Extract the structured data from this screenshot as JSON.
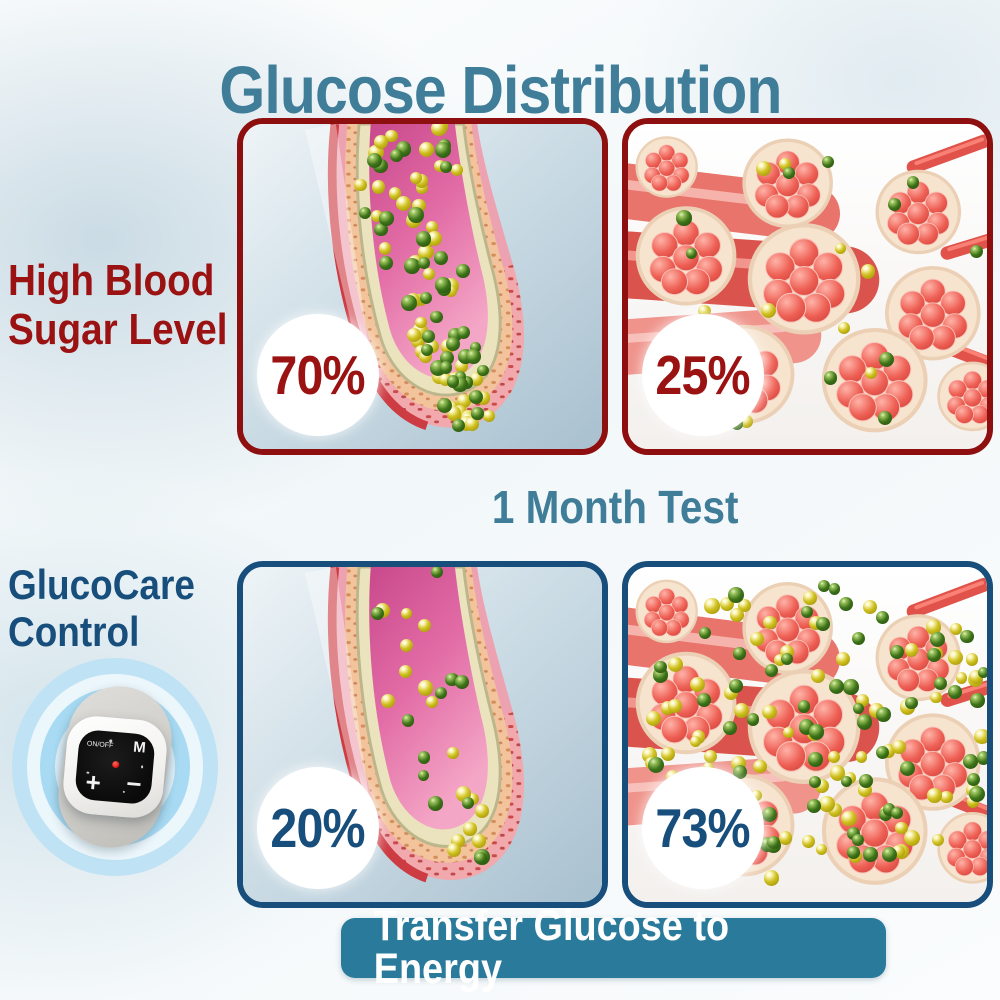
{
  "title": "Glucose Distribution",
  "subtitle": "1 Month Test",
  "banner": "Transfer Glucose to Energy",
  "rows": [
    {
      "label": "High Blood Sugar Level",
      "label_lines": [
        "High Blood",
        "Sugar Level"
      ]
    },
    {
      "label": "GlucoCare Control",
      "label_lines": [
        "GlucoCare",
        "Control"
      ]
    }
  ],
  "panels": [
    {
      "name": "blood-vessel-high-sugar",
      "type": "vessel",
      "theme": "red",
      "percent": "70%",
      "dots": {
        "yellow": 55,
        "green": 42
      },
      "seed": 7
    },
    {
      "name": "muscle-fibers-high-sugar",
      "type": "muscle",
      "theme": "red",
      "percent": "25%",
      "dots": {
        "yellow": 9,
        "green": 14
      },
      "seed": 13
    },
    {
      "name": "blood-vessel-glucocare",
      "type": "vessel",
      "theme": "navy",
      "percent": "20%",
      "dots": {
        "yellow": 16,
        "green": 12
      },
      "seed": 21
    },
    {
      "name": "muscle-fibers-glucocare",
      "type": "muscle",
      "theme": "navy",
      "percent": "73%",
      "dots": {
        "yellow": 78,
        "green": 62
      },
      "seed": 33
    }
  ],
  "device": {
    "on_off_label": "ON/OFF",
    "mode_label": "M",
    "plus_label": "+",
    "minus_label": "−"
  },
  "colors": {
    "title": "#3f7d99",
    "red": "#9a1212",
    "red_border": "#8e0f0f",
    "navy": "#174e7c",
    "banner": "#2a7b9b",
    "banner_text": "#ffffff",
    "yellow_dot": "#cfc01d",
    "green_dot": "#3c7218"
  }
}
